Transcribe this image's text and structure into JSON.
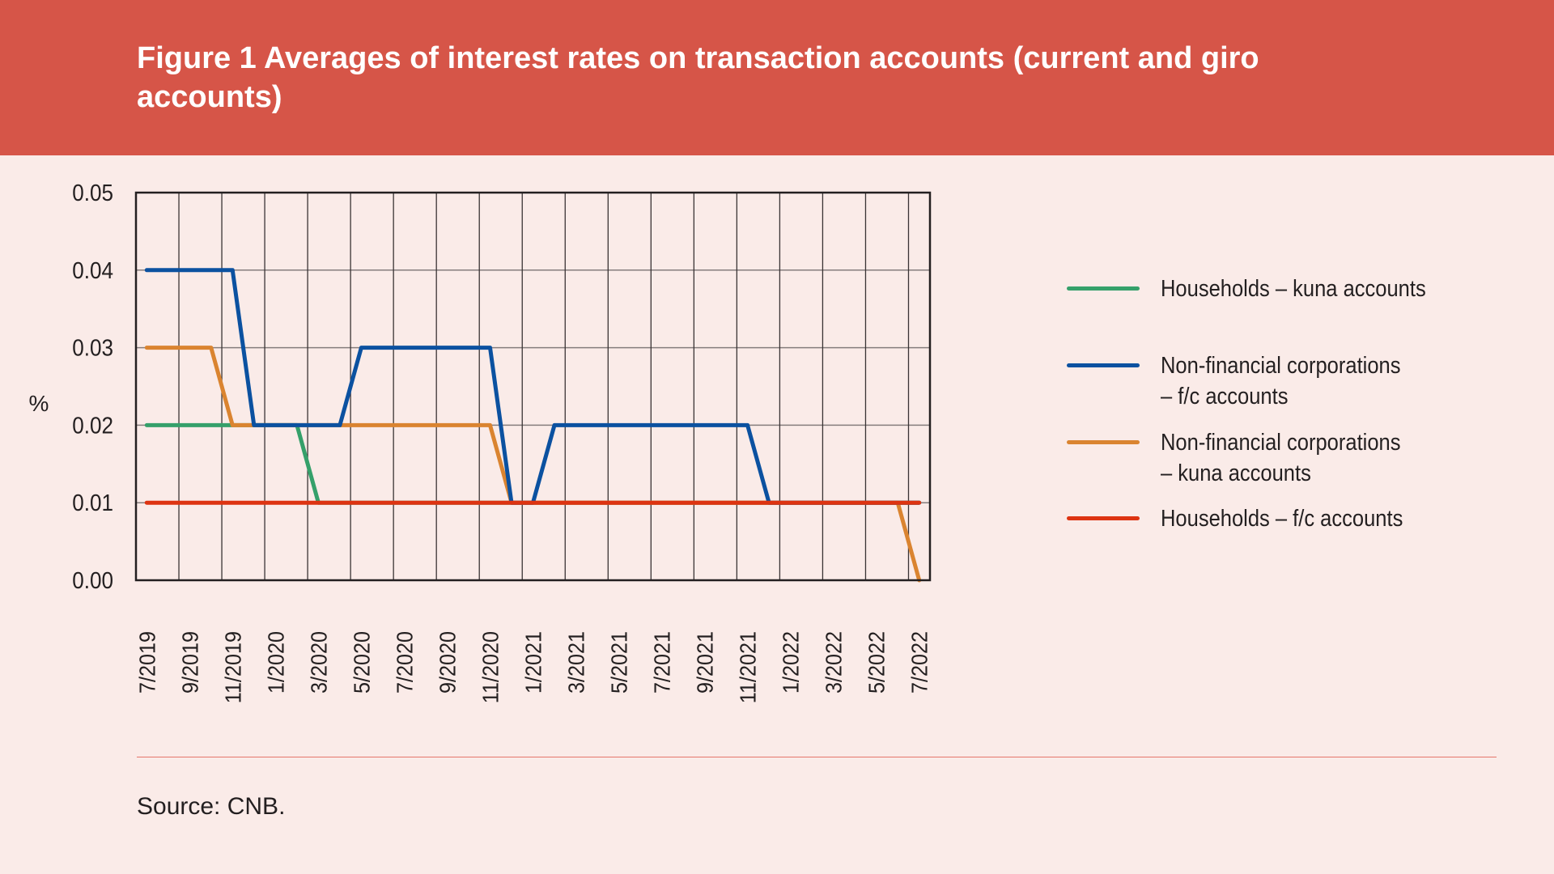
{
  "header": {
    "title": "Figure 1 Averages of interest rates on transaction accounts (current and giro accounts)"
  },
  "footer": {
    "source": "Source: CNB."
  },
  "colors": {
    "header_bg": "#D65548",
    "page_bg": "#FAEBE8"
  },
  "chart_data": {
    "type": "line",
    "title": "Figure 1 Averages of interest rates on transaction accounts (current and giro accounts)",
    "ylabel": "%",
    "xlabel": "",
    "ylim": [
      0,
      0.05
    ],
    "yticks": [
      "0.00",
      "0.01",
      "0.02",
      "0.03",
      "0.04",
      "0.05"
    ],
    "grid": true,
    "legend_position": "right",
    "x": [
      "7/2019",
      "8/2019",
      "9/2019",
      "10/2019",
      "11/2019",
      "12/2019",
      "1/2020",
      "2/2020",
      "3/2020",
      "4/2020",
      "5/2020",
      "6/2020",
      "7/2020",
      "8/2020",
      "9/2020",
      "10/2020",
      "11/2020",
      "12/2020",
      "1/2021",
      "2/2021",
      "3/2021",
      "4/2021",
      "5/2021",
      "6/2021",
      "7/2021",
      "8/2021",
      "9/2021",
      "10/2021",
      "11/2021",
      "12/2021",
      "1/2022",
      "2/2022",
      "3/2022",
      "4/2022",
      "5/2022",
      "6/2022",
      "7/2022"
    ],
    "xtick_labels": [
      "7/2019",
      "9/2019",
      "11/2019",
      "1/2020",
      "3/2020",
      "5/2020",
      "7/2020",
      "9/2020",
      "11/2020",
      "1/2021",
      "3/2021",
      "5/2021",
      "7/2021",
      "9/2021",
      "11/2021",
      "1/2022",
      "3/2022",
      "5/2022",
      "7/2022"
    ],
    "series": [
      {
        "name": "Households – kuna accounts",
        "color": "#35A06A",
        "values": [
          0.02,
          0.02,
          0.02,
          0.02,
          0.02,
          0.02,
          0.02,
          0.02,
          0.01,
          0.01,
          0.01,
          0.01,
          0.01,
          0.01,
          0.01,
          0.01,
          0.01,
          0.01,
          0.01,
          0.01,
          0.01,
          0.01,
          0.01,
          0.01,
          0.01,
          0.01,
          0.01,
          0.01,
          0.01,
          0.01,
          0.01,
          0.01,
          0.01,
          0.01,
          0.01,
          0.01,
          0.01
        ]
      },
      {
        "name": "Non-financial corporations – f/c accounts",
        "color": "#0B51A0",
        "values": [
          0.04,
          0.04,
          0.04,
          0.04,
          0.04,
          0.02,
          0.02,
          0.02,
          0.02,
          0.02,
          0.03,
          0.03,
          0.03,
          0.03,
          0.03,
          0.03,
          0.03,
          0.01,
          0.01,
          0.02,
          0.02,
          0.02,
          0.02,
          0.02,
          0.02,
          0.02,
          0.02,
          0.02,
          0.02,
          0.01,
          0.01,
          0.01,
          0.01,
          0.01,
          0.01,
          0.01,
          0.01
        ]
      },
      {
        "name": "Non-financial corporations – kuna accounts",
        "color": "#DA8430",
        "values": [
          0.03,
          0.03,
          0.03,
          0.03,
          0.02,
          0.02,
          0.02,
          0.02,
          0.02,
          0.02,
          0.02,
          0.02,
          0.02,
          0.02,
          0.02,
          0.02,
          0.02,
          0.01,
          0.01,
          0.01,
          0.01,
          0.01,
          0.01,
          0.01,
          0.01,
          0.01,
          0.01,
          0.01,
          0.01,
          0.01,
          0.01,
          0.01,
          0.01,
          0.01,
          0.01,
          0.01,
          0.0
        ]
      },
      {
        "name": "Households – f/c accounts",
        "color": "#DD3311",
        "values": [
          0.01,
          0.01,
          0.01,
          0.01,
          0.01,
          0.01,
          0.01,
          0.01,
          0.01,
          0.01,
          0.01,
          0.01,
          0.01,
          0.01,
          0.01,
          0.01,
          0.01,
          0.01,
          0.01,
          0.01,
          0.01,
          0.01,
          0.01,
          0.01,
          0.01,
          0.01,
          0.01,
          0.01,
          0.01,
          0.01,
          0.01,
          0.01,
          0.01,
          0.01,
          0.01,
          0.01,
          0.01
        ]
      }
    ],
    "legend": [
      {
        "line1": "Households – kuna accounts",
        "line2": ""
      },
      {
        "line1": "Non-financial corporations",
        "line2": "– f/c accounts"
      },
      {
        "line1": "Non-financial corporations",
        "line2": "– kuna accounts"
      },
      {
        "line1": "Households – f/c accounts",
        "line2": ""
      }
    ]
  }
}
